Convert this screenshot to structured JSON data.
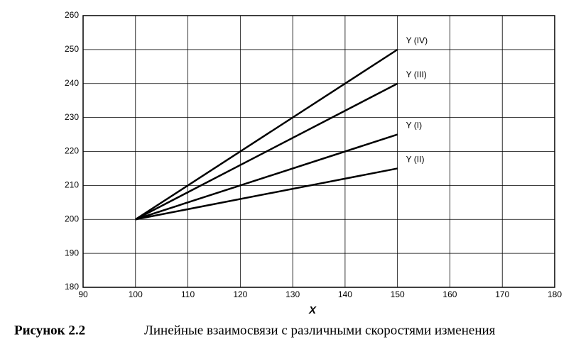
{
  "chart_data": {
    "type": "line",
    "x_label": "X",
    "caption_number": "Рисунок 2.2",
    "caption": "Линейные взаимосвязи с различными скоростями изменения",
    "x": [
      100,
      150
    ],
    "series": [
      {
        "name": "Y (IV)",
        "color": "#000000",
        "values": [
          200,
          250
        ]
      },
      {
        "name": "Y (III)",
        "color": "#000000",
        "values": [
          200,
          240
        ]
      },
      {
        "name": "Y (I)",
        "color": "#000000",
        "values": [
          200,
          225
        ]
      },
      {
        "name": "Y (II)",
        "color": "#000000",
        "values": [
          200,
          215
        ]
      }
    ],
    "xlim": [
      90,
      180
    ],
    "xticks": [
      90,
      100,
      110,
      120,
      130,
      140,
      150,
      160,
      170,
      180
    ],
    "ylim": [
      180,
      260
    ],
    "yticks": [
      180,
      190,
      200,
      210,
      220,
      230,
      240,
      250,
      260
    ],
    "grid": true
  }
}
